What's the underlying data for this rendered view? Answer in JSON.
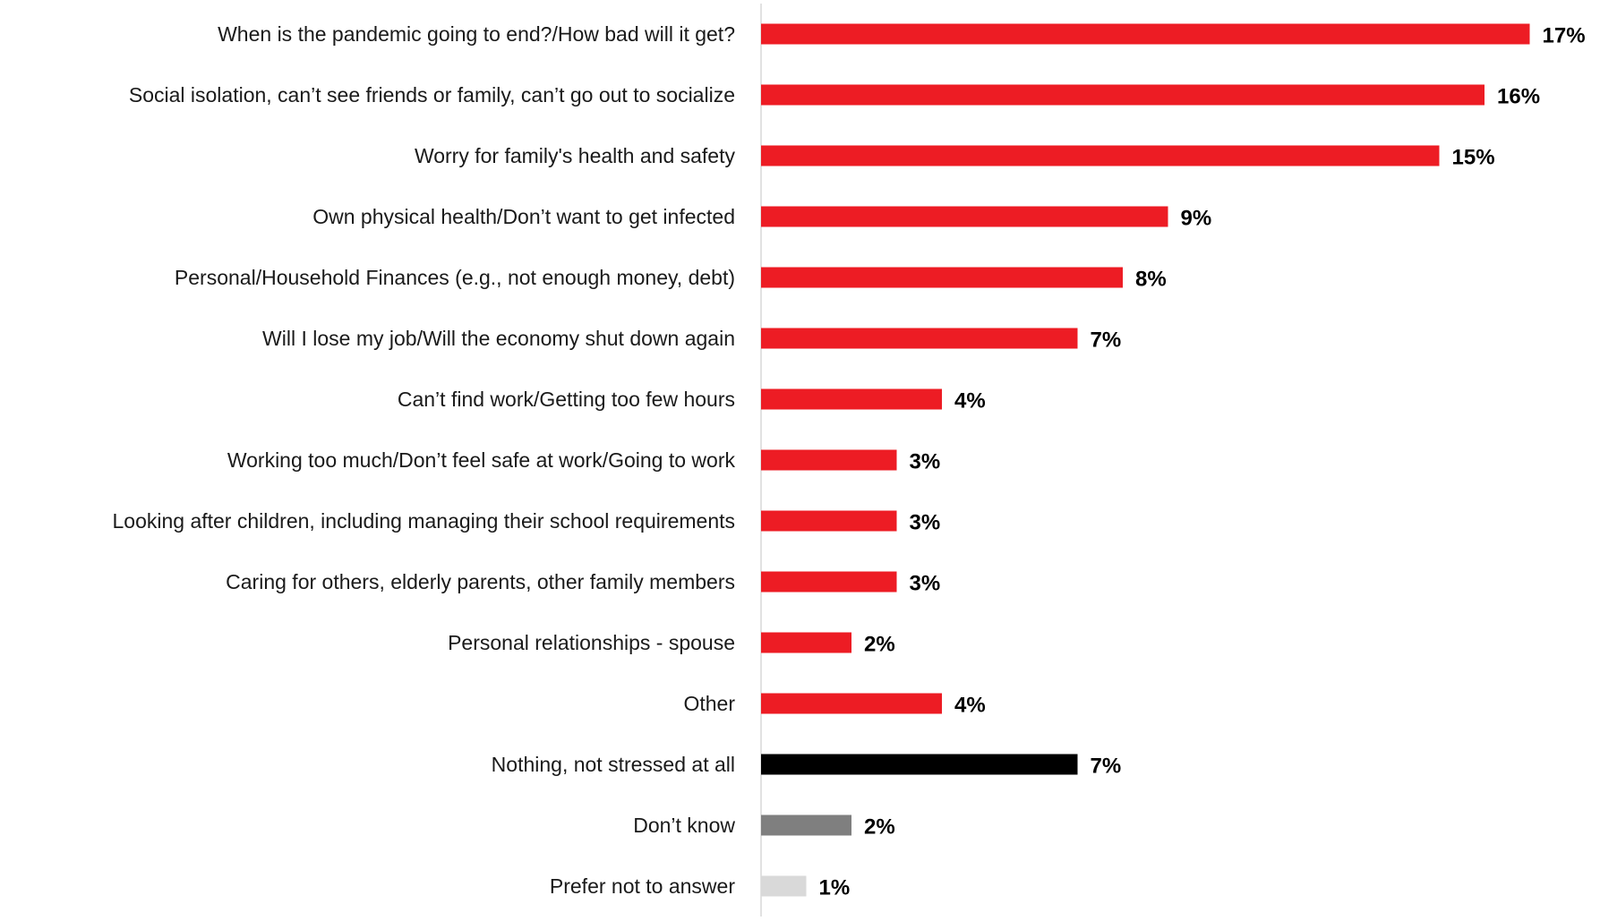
{
  "chart_data": {
    "type": "bar",
    "orientation": "horizontal",
    "categories": [
      "When is the pandemic going to end?/How bad will it get?",
      "Social isolation, can’t see friends or family, can’t go out to socialize",
      "Worry for family's health and safety",
      "Own physical health/Don’t want to get infected",
      "Personal/Household Finances (e.g., not enough money, debt)",
      "Will I lose my job/Will the economy shut down again",
      "Can’t find work/Getting too few hours",
      "Working too much/Don’t feel safe at work/Going to work",
      "Looking after children, including managing their school requirements",
      "Caring for others, elderly parents, other family members",
      "Personal relationships - spouse",
      "Other",
      "Nothing, not stressed at all",
      "Don’t know",
      "Prefer not to answer"
    ],
    "values": [
      17,
      16,
      15,
      9,
      8,
      7,
      4,
      3,
      3,
      3,
      2,
      4,
      7,
      2,
      1
    ],
    "value_labels": [
      "17%",
      "16%",
      "15%",
      "9%",
      "8%",
      "7%",
      "4%",
      "3%",
      "3%",
      "3%",
      "2%",
      "4%",
      "7%",
      "2%",
      "1%"
    ],
    "bar_colors": [
      "#ED1C24",
      "#ED1C24",
      "#ED1C24",
      "#ED1C24",
      "#ED1C24",
      "#ED1C24",
      "#ED1C24",
      "#ED1C24",
      "#ED1C24",
      "#ED1C24",
      "#ED1C24",
      "#ED1C24",
      "#000000",
      "#7F7F7F",
      "#D9D9D9"
    ],
    "axis_line_color": "#D9D9D9",
    "xlim": [
      0,
      17
    ],
    "grid": false,
    "legend": "none",
    "title": "",
    "xlabel": "",
    "ylabel": ""
  }
}
